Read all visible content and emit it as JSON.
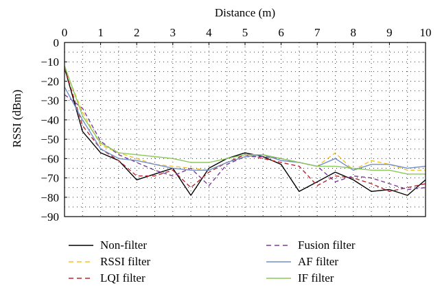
{
  "chart_data": {
    "type": "line",
    "title": "",
    "xlabel": "Distance (m)",
    "ylabel": "RSSI (dBm)",
    "xlim": [
      0,
      10
    ],
    "ylim": [
      -90,
      0
    ],
    "x_axis_position": "top",
    "x_ticks": [
      0,
      1,
      2,
      3,
      4,
      5,
      6,
      7,
      8,
      9,
      10
    ],
    "y_ticks": [
      0,
      -10,
      -20,
      -30,
      -40,
      -50,
      -60,
      -70,
      -80,
      -90
    ],
    "grid": "dotted",
    "legend_position": "bottom",
    "legend_columns": 2,
    "x": [
      0,
      0.5,
      1,
      1.5,
      2,
      2.5,
      3,
      3.5,
      4,
      4.5,
      5,
      5.5,
      6,
      6.5,
      7,
      7.5,
      8,
      8.5,
      9,
      9.5,
      10
    ],
    "series": [
      {
        "name": "Non-filter",
        "color": "#000000",
        "dash": "solid",
        "values": [
          -13,
          -46,
          -57,
          -61,
          -71,
          -68,
          -65,
          -79,
          -65,
          -60,
          -57,
          -59,
          -63,
          -77,
          -72,
          -67,
          -71,
          -77,
          -76,
          -79,
          -71
        ]
      },
      {
        "name": "RSSI filter",
        "color": "#f2c12e",
        "dash": "dashed",
        "values": [
          -13,
          -36,
          -53,
          -57,
          -60,
          -63,
          -64,
          -65,
          -66,
          -62,
          -59,
          -58,
          -61,
          -62,
          -64,
          -57,
          -66,
          -61,
          -63,
          -66,
          -66
        ]
      },
      {
        "name": "LQI filter",
        "color": "#b5262e",
        "dash": "dashed",
        "values": [
          -13,
          -43,
          -55,
          -61,
          -69,
          -69,
          -66,
          -75,
          -67,
          -62,
          -58,
          -60,
          -62,
          -64,
          -74,
          -69,
          -70,
          -73,
          -77,
          -75,
          -73
        ]
      },
      {
        "name": "Fusion filter",
        "color": "#7b3b9a",
        "dash": "dashed",
        "values": [
          -27,
          -34,
          -51,
          -58,
          -62,
          -66,
          -69,
          -65,
          -74,
          -63,
          -59,
          -59,
          -60,
          -62,
          -64,
          -72,
          -69,
          -70,
          -73,
          -76,
          -75
        ]
      },
      {
        "name": "AF filter",
        "color": "#6f8fc9",
        "dash": "solid",
        "values": [
          -23,
          -40,
          -55,
          -60,
          -61,
          -63,
          -65,
          -66,
          -66,
          -62,
          -59,
          -58,
          -61,
          -62,
          -64,
          -60,
          -66,
          -63,
          -63,
          -65,
          -64
        ]
      },
      {
        "name": "IF filter",
        "color": "#8ac85a",
        "dash": "solid",
        "values": [
          -12,
          -38,
          -52,
          -57,
          -58,
          -59,
          -60,
          -62,
          -62,
          -60,
          -58,
          -58,
          -60,
          -62,
          -64,
          -64,
          -65,
          -66,
          -66,
          -68,
          -68
        ]
      }
    ]
  }
}
